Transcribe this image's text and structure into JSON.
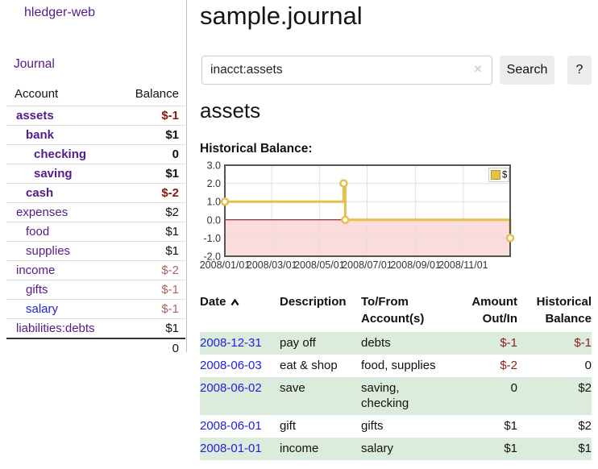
{
  "sidebar": {
    "app_title": "hledger-web",
    "nav": [
      {
        "label": "Journal"
      }
    ],
    "accounts_table": {
      "headers": {
        "account": "Account",
        "balance": "Balance"
      },
      "rows": [
        {
          "account": "assets",
          "balance": "$-1",
          "indent": 0,
          "bold": true,
          "balance_style": "neg-strong",
          "link_style": "purple"
        },
        {
          "account": "bank",
          "balance": "$1",
          "indent": 1,
          "bold": true,
          "balance_style": "",
          "link_style": "purple"
        },
        {
          "account": "checking",
          "balance": "0",
          "indent": 2,
          "bold": true,
          "balance_style": "",
          "link_style": "purple"
        },
        {
          "account": "saving",
          "balance": "$1",
          "indent": 2,
          "bold": true,
          "balance_style": "",
          "link_style": "purple"
        },
        {
          "account": "cash",
          "balance": "$-2",
          "indent": 1,
          "bold": true,
          "balance_style": "neg-strong",
          "link_style": "purple"
        },
        {
          "account": "expenses",
          "balance": "$2",
          "indent": 0,
          "bold": false,
          "balance_style": "",
          "link_style": "purple"
        },
        {
          "account": "food",
          "balance": "$1",
          "indent": 1,
          "bold": false,
          "balance_style": "",
          "link_style": "purple"
        },
        {
          "account": "supplies",
          "balance": "$1",
          "indent": 1,
          "bold": false,
          "balance_style": "",
          "link_style": "purple"
        },
        {
          "account": "income",
          "balance": "$-2",
          "indent": 0,
          "bold": false,
          "balance_style": "neg-muted",
          "link_style": "purple"
        },
        {
          "account": "gifts",
          "balance": "$-1",
          "indent": 1,
          "bold": false,
          "balance_style": "neg-muted",
          "link_style": "purple"
        },
        {
          "account": "salary",
          "balance": "$-1",
          "indent": 1,
          "bold": false,
          "balance_style": "neg-muted",
          "link_style": "bluelink"
        },
        {
          "account": "liabilities:debts",
          "balance": "$1",
          "indent": 0,
          "bold": false,
          "balance_style": "",
          "link_style": "purple"
        }
      ],
      "total_row": {
        "balance": "0"
      }
    }
  },
  "main": {
    "title": "sample.journal",
    "search": {
      "value": "inacct:assets",
      "clear_icon": "×",
      "button_label": "Search",
      "help_label": "?"
    },
    "account_heading": "assets"
  },
  "chart_data": {
    "type": "line",
    "title": "Historical Balance:",
    "step": true,
    "legend": [
      {
        "label": "$"
      }
    ],
    "series": [
      {
        "name": "$",
        "color": "#e6c04a",
        "marker_edge_color": "#b8941f",
        "points": [
          {
            "date": "2008-01-01",
            "day": 0,
            "value": 1
          },
          {
            "date": "2008-06-01",
            "day": 152,
            "value": 2
          },
          {
            "date": "2008-06-03",
            "day": 154,
            "value": 0
          },
          {
            "date": "2008-12-31",
            "day": 365,
            "value": -1
          }
        ]
      }
    ],
    "x_tick_labels": [
      "2008/01/01",
      "2008/03/01",
      "2008/05/01",
      "2008/07/01",
      "2008/09/01",
      "2008/11/01"
    ],
    "x_tick_days": [
      0,
      60,
      121,
      182,
      244,
      305
    ],
    "x_range_days": 365,
    "y_ticks": [
      3.0,
      2.0,
      1.0,
      0.0,
      -1.0,
      -2.0
    ],
    "ylim": [
      -2,
      3
    ],
    "grid": true,
    "legend_position": "top-right",
    "negative_region_fill": "#fbdcdc",
    "zero_line_color": "#7f0000",
    "grid_line_color": "#e0e0e0",
    "border_color": "#545454"
  },
  "transactions_table": {
    "headers": [
      "Date",
      "Description",
      "To/From Account(s)",
      "Amount Out/In",
      "Historical Balance"
    ],
    "sort_column": "Date",
    "sort_direction": "ascending",
    "rows": [
      {
        "date": "2008-12-31",
        "description": "pay off",
        "accounts": "debts",
        "amount": "$-1",
        "amount_negative": true,
        "balance": "$-1",
        "balance_negative": true
      },
      {
        "date": "2008-06-03",
        "description": "eat & shop",
        "accounts": "food, supplies",
        "amount": "$-2",
        "amount_negative": true,
        "balance": "0",
        "balance_negative": false
      },
      {
        "date": "2008-06-02",
        "description": "save",
        "accounts": "saving, checking",
        "amount": "0",
        "amount_negative": false,
        "balance": "$2",
        "balance_negative": false
      },
      {
        "date": "2008-06-01",
        "description": "gift",
        "accounts": "gifts",
        "amount": "$1",
        "amount_negative": false,
        "balance": "$2",
        "balance_negative": false
      },
      {
        "date": "2008-01-01",
        "description": "income",
        "accounts": "salary",
        "amount": "$1",
        "amount_negative": false,
        "balance": "$1",
        "balance_negative": false
      }
    ]
  },
  "colors": {
    "link_purple": "#551a8b",
    "link_blue": "#2121e0",
    "negative_strong": "#8b1414",
    "negative_muted": "#b25f5f",
    "table_negative": "#8f1d1d",
    "row_green": "#dcecdc",
    "series_yellow": "#e6c04a",
    "button_gray": "#ececec"
  }
}
